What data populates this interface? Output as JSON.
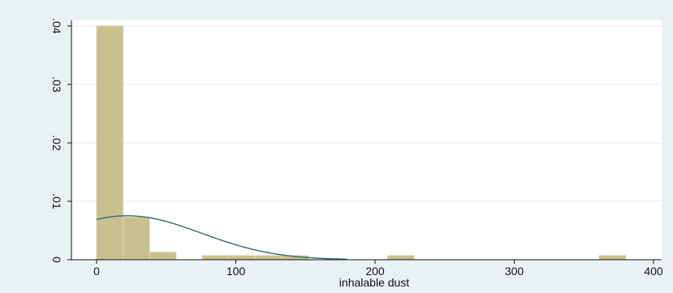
{
  "chart_data": {
    "type": "bar",
    "title": "",
    "xlabel": "inhalable dust",
    "ylabel": "",
    "xlim": [
      -20,
      400
    ],
    "ylim": [
      0,
      0.04
    ],
    "x_ticks": [
      0,
      100,
      200,
      300,
      400
    ],
    "x_tick_labels": [
      "0",
      "100",
      "200",
      "300",
      "400"
    ],
    "y_ticks": [
      0,
      0.01,
      0.02,
      0.03,
      0.04
    ],
    "y_tick_labels": [
      "0",
      ".01",
      ".02",
      ".03",
      ".04"
    ],
    "grid": true,
    "bin_width": 19,
    "bins": [
      {
        "x0": 0,
        "x1": 19,
        "density": 0.04
      },
      {
        "x0": 19,
        "x1": 38,
        "density": 0.0073
      },
      {
        "x0": 38,
        "x1": 57,
        "density": 0.0013
      },
      {
        "x0": 57,
        "x1": 76,
        "density": 0
      },
      {
        "x0": 76,
        "x1": 95,
        "density": 0.0007
      },
      {
        "x0": 95,
        "x1": 114,
        "density": 0.0007
      },
      {
        "x0": 114,
        "x1": 133,
        "density": 0.0007
      },
      {
        "x0": 133,
        "x1": 152,
        "density": 0.0007
      },
      {
        "x0": 209,
        "x1": 228,
        "density": 0.0007
      },
      {
        "x0": 361,
        "x1": 380,
        "density": 0.0007
      }
    ],
    "normal_curve": {
      "mean": 22,
      "sd": 53
    },
    "colors": {
      "bar_fill": "#c8c08e",
      "bar_stroke": "#ddd6ac",
      "curve": "#2e6d6b",
      "plot_bg": "#ffffff",
      "page_bg": "#eaf1f3",
      "grid": "#e3ebee"
    }
  }
}
